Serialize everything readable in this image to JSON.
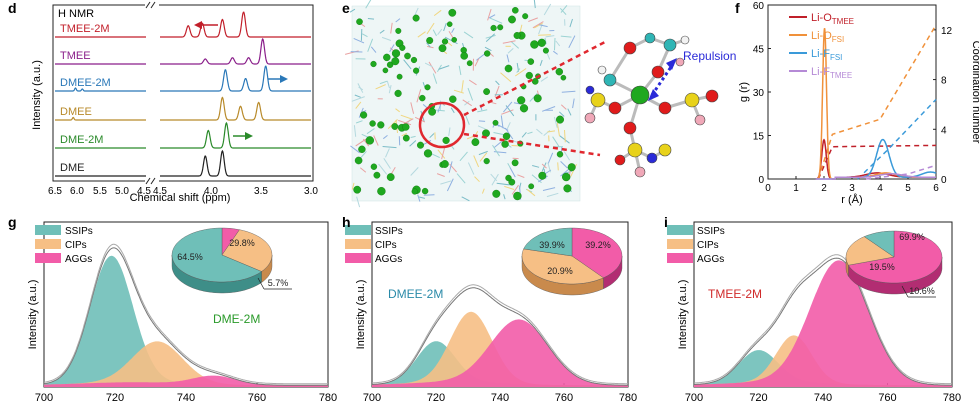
{
  "panels": {
    "d": {
      "letter": "d",
      "inner_label": "H NMR",
      "ylabel": "Intensity (a.u.)",
      "xlabel": "Chemical shift (ppm)",
      "ticks_left": [
        "6.5",
        "6.0",
        "5.5",
        "5.0",
        "4.5"
      ],
      "ticks_right": [
        "4.5",
        "4.0",
        "3.5",
        "3.0"
      ]
    },
    "e": {
      "letter": "e",
      "repulsion_label": "Repulsion",
      "colors": {
        "li": "#1fa81f",
        "o": "#e01b1b",
        "s": "#e8d21a",
        "f": "#f0a8b8",
        "c": "#2fb5b5",
        "n": "#2a2ad8",
        "h": "#f2f2f2",
        "red_circle": "#e0282f"
      }
    },
    "f": {
      "letter": "f",
      "ylabel_left": "g (r)",
      "ylabel_right": "Coordination number",
      "xlabel": "r (Å)",
      "xticks": [
        "0",
        "1",
        "2",
        "3",
        "4",
        "5",
        "6"
      ],
      "yticks_left": [
        "0",
        "15",
        "30",
        "45",
        "60"
      ],
      "yticks_right": [
        "0",
        "4",
        "8",
        "12"
      ],
      "legend": [
        {
          "base": "Li-O",
          "sub": "TMEE",
          "color": "#c0202a"
        },
        {
          "base": "Li-O",
          "sub": "FSI",
          "color": "#f0913a"
        },
        {
          "base": "Li-F",
          "sub": "FSI",
          "color": "#3a9ad9"
        },
        {
          "base": "Li-F",
          "sub": "TMEE",
          "color": "#b58ad6"
        }
      ]
    },
    "g": {
      "letter": "g",
      "sample": "DME-2M",
      "sample_color": "#2a9a2a",
      "pie": {
        "ssip": "64.5%",
        "cip": "29.8%",
        "agg": "5.7%"
      }
    },
    "h": {
      "letter": "h",
      "sample": "DMEE-2M",
      "sample_color": "#2a8aa8",
      "pie": {
        "ssip": "20.9%",
        "cip": "39.9%",
        "agg": "39.2%"
      }
    },
    "i": {
      "letter": "i",
      "sample": "TMEE-2M",
      "sample_color": "#d02a2a",
      "pie": {
        "ssip": "10.6%",
        "cip": "19.5%",
        "agg": "69.9%"
      }
    }
  },
  "raman": {
    "ylabel": "Intensity (a.u.)",
    "xticks": [
      "700",
      "720",
      "740",
      "760",
      "780"
    ],
    "legend": [
      "SSIPs",
      "CIPs",
      "AGGs"
    ],
    "colors": {
      "ssip": "#6fbfb8",
      "cip": "#f6bf85",
      "agg": "#f25ca8"
    }
  },
  "chart_data": [
    {
      "panel": "d",
      "type": "line",
      "xlabel": "Chemical shift (ppm)",
      "ylabel": "Intensity (a.u.)",
      "xlim": [
        6.5,
        3.0
      ],
      "axis_break": [
        4.5,
        4.5
      ],
      "series": [
        {
          "name": "TMEE-2M",
          "color": "#c21f2a",
          "peaks": [
            [
              4.22,
              0.45
            ],
            [
              4.08,
              0.55
            ],
            [
              3.88,
              0.7
            ],
            [
              3.67,
              1.0
            ]
          ],
          "arrow": "left"
        },
        {
          "name": "TMEE",
          "color": "#8a1f8a",
          "peaks": [
            [
              4.05,
              0.2
            ],
            [
              3.78,
              0.25
            ],
            [
              3.62,
              0.25
            ],
            [
              3.48,
              1.0
            ]
          ]
        },
        {
          "name": "DMEE-2M",
          "color": "#2a78b8",
          "peaks": [
            [
              6.05,
              0.12
            ],
            [
              5.9,
              0.08
            ],
            [
              3.85,
              0.85
            ],
            [
              3.65,
              0.5
            ],
            [
              3.45,
              1.0
            ]
          ],
          "arrow": "right"
        },
        {
          "name": "DMEE",
          "color": "#b88a2a",
          "peaks": [
            [
              6.1,
              0.1
            ],
            [
              3.88,
              0.9
            ],
            [
              3.7,
              0.55
            ],
            [
              3.52,
              0.7
            ]
          ]
        },
        {
          "name": "DME-2M",
          "color": "#2a8a2a",
          "peaks": [
            [
              4.02,
              0.7
            ],
            [
              3.84,
              1.0
            ]
          ],
          "arrow": "right"
        },
        {
          "name": "DME",
          "color": "#222222",
          "peaks": [
            [
              4.05,
              0.8
            ],
            [
              3.88,
              1.0
            ]
          ]
        }
      ]
    },
    {
      "panel": "f",
      "type": "line",
      "xlabel": "r (Å)",
      "ylabel": "g (r)",
      "ylabel_right": "Coordination number",
      "xlim": [
        0,
        6
      ],
      "ylim": [
        0,
        60
      ],
      "ylim_right": [
        0,
        14
      ],
      "rdf": [
        {
          "name": "Li-OTMEE",
          "color": "#c0202a",
          "peaks": [
            [
              2.0,
              13.5,
              0.08
            ],
            [
              3.9,
              1.5,
              0.4
            ]
          ]
        },
        {
          "name": "Li-OFSI",
          "color": "#f0913a",
          "peaks": [
            [
              2.02,
              52,
              0.07
            ],
            [
              4.2,
              1.5,
              0.35
            ]
          ]
        },
        {
          "name": "Li-FFSI",
          "color": "#3a9ad9",
          "peaks": [
            [
              4.1,
              13,
              0.22
            ],
            [
              5.8,
              1.8,
              0.3
            ]
          ]
        },
        {
          "name": "Li-FTMEE",
          "color": "#b58ad6",
          "peaks": [
            [
              4.4,
              1.2,
              0.4
            ]
          ]
        }
      ],
      "coordination": [
        {
          "name": "Li-OTMEE",
          "color": "#c0202a",
          "points": [
            [
              1.8,
              0
            ],
            [
              2.3,
              2.6
            ],
            [
              6,
              2.7
            ]
          ]
        },
        {
          "name": "Li-OFSI",
          "color": "#f0913a",
          "points": [
            [
              1.8,
              0
            ],
            [
              2.3,
              3.6
            ],
            [
              4,
              4.8
            ],
            [
              6,
              12.4
            ]
          ]
        },
        {
          "name": "Li-FFSI",
          "color": "#3a9ad9",
          "points": [
            [
              3.2,
              0
            ],
            [
              4.3,
              2.4
            ],
            [
              6,
              6.4
            ]
          ]
        },
        {
          "name": "Li-FTMEE",
          "color": "#b58ad6",
          "points": [
            [
              3.5,
              0
            ],
            [
              5,
              0.4
            ],
            [
              6,
              1.1
            ]
          ]
        }
      ]
    },
    {
      "panel": "g",
      "type": "area",
      "xlim": [
        700,
        780
      ],
      "ylim": [
        0,
        1.12
      ],
      "series": [
        {
          "name": "SSIPs",
          "center": 719,
          "height": 0.86,
          "width": 6
        },
        {
          "name": "CIPs",
          "center": 732,
          "height": 0.28,
          "width": 7
        },
        {
          "name": "AGGs",
          "center": 748,
          "height": 0.06,
          "width": 6
        }
      ],
      "pie": [
        {
          "name": "SSIPs",
          "value": 64.5
        },
        {
          "name": "CIPs",
          "value": 29.8
        },
        {
          "name": "AGGs",
          "value": 5.7
        }
      ]
    },
    {
      "panel": "h",
      "type": "area",
      "xlim": [
        700,
        780
      ],
      "ylim": [
        0,
        1.12
      ],
      "series": [
        {
          "name": "SSIPs",
          "center": 720,
          "height": 0.28,
          "width": 6
        },
        {
          "name": "CIPs",
          "center": 731,
          "height": 0.48,
          "width": 6.5
        },
        {
          "name": "AGGs",
          "center": 746,
          "height": 0.44,
          "width": 9
        }
      ],
      "pie": [
        {
          "name": "SSIPs",
          "value": 20.9
        },
        {
          "name": "CIPs",
          "value": 39.9
        },
        {
          "name": "AGGs",
          "value": 39.2
        }
      ]
    },
    {
      "panel": "i",
      "type": "area",
      "xlim": [
        700,
        780
      ],
      "ylim": [
        0,
        1.12
      ],
      "series": [
        {
          "name": "SSIPs",
          "center": 720,
          "height": 0.22,
          "width": 6
        },
        {
          "name": "CIPs",
          "center": 731,
          "height": 0.32,
          "width": 5.5
        },
        {
          "name": "AGGs",
          "center": 745,
          "height": 0.84,
          "width": 9
        }
      ],
      "pie": [
        {
          "name": "SSIPs",
          "value": 10.6
        },
        {
          "name": "CIPs",
          "value": 19.5
        },
        {
          "name": "AGGs",
          "value": 69.9
        }
      ]
    }
  ]
}
